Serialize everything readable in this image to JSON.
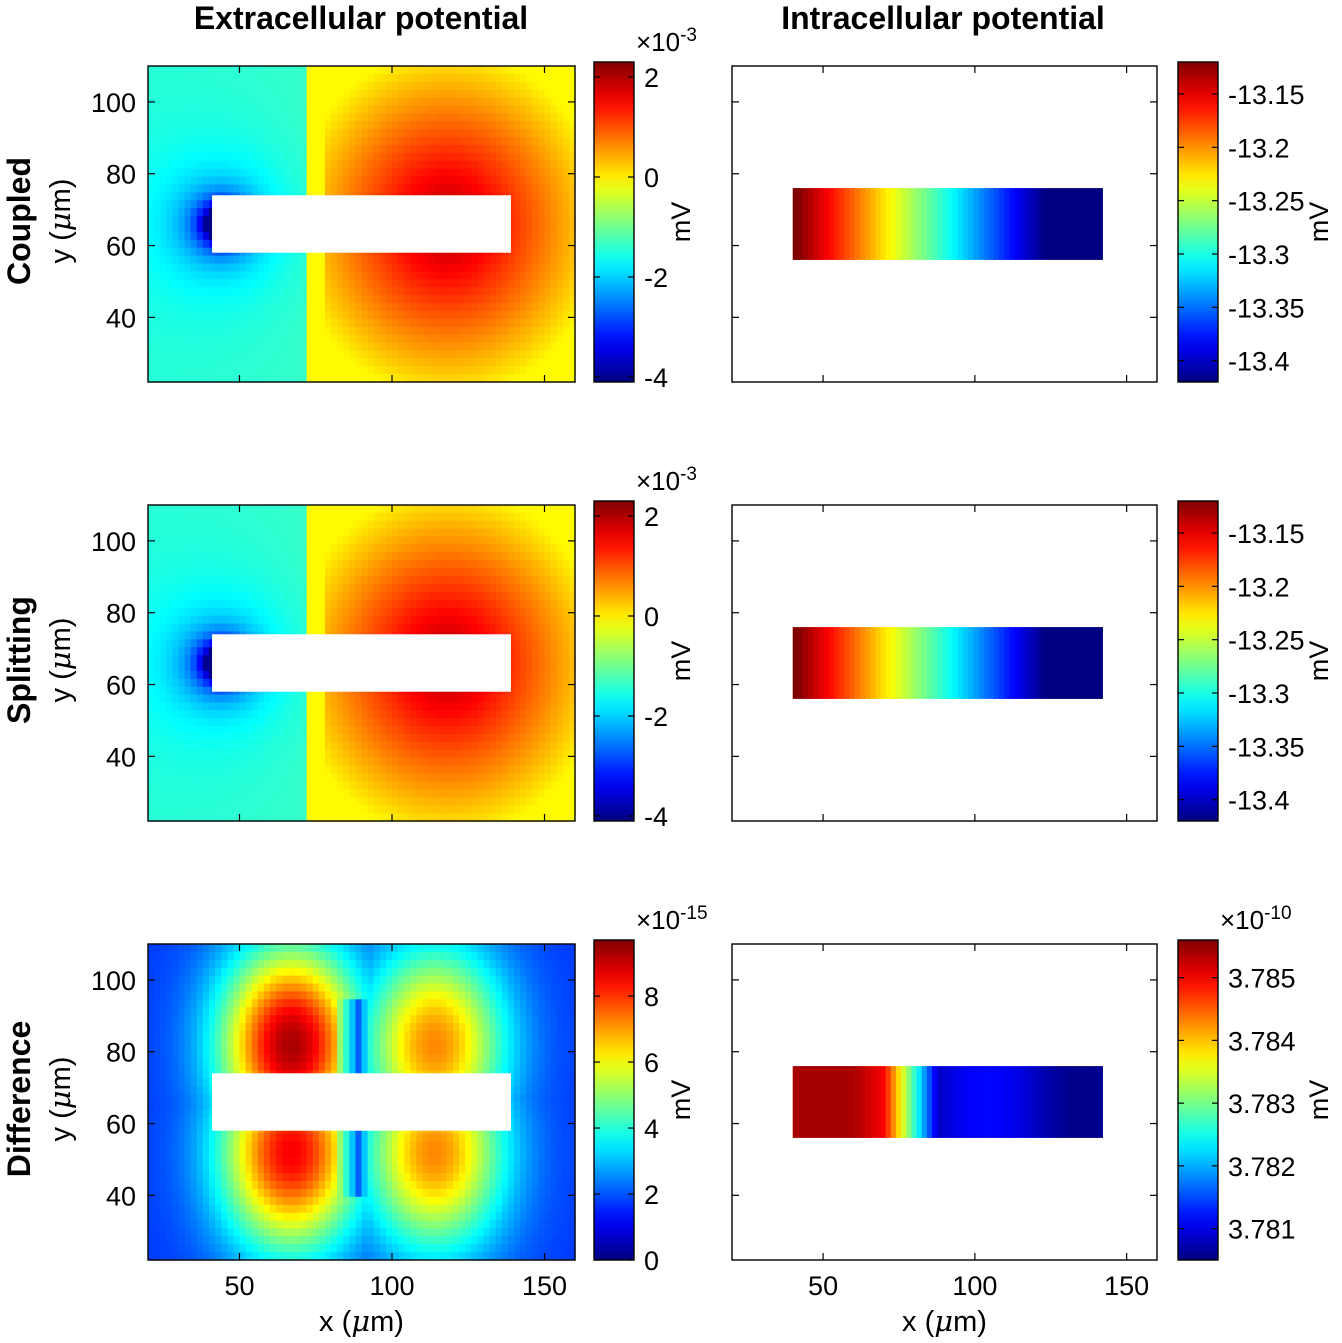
{
  "column_titles": [
    "Extracellular potential",
    "Intracellular potential"
  ],
  "row_titles": [
    "Coupled",
    "Splitting",
    "Difference"
  ],
  "x_axis_label": "x (μm)",
  "x_axis_label_parts": {
    "pre": "x (",
    "mu": "μ",
    "post": "m)"
  },
  "y_axis_label": "y (μm)",
  "y_axis_label_parts": {
    "pre": "y (",
    "mu": "μ",
    "post": "m)"
  },
  "colorbar_unit": "mV",
  "colormap": "jet",
  "chart_data": [
    {
      "type": "heatmap",
      "row": "Coupled",
      "column": "Extracellular potential",
      "xlim": [
        20,
        160
      ],
      "ylim": [
        22,
        110
      ],
      "x_ticks": [
        50,
        100,
        150
      ],
      "x_tick_labels_shown": false,
      "y_ticks": [
        40,
        60,
        80,
        100
      ],
      "y_tick_labels": [
        "40",
        "60",
        "80",
        "100"
      ],
      "cell_mask": {
        "x": [
          41,
          139
        ],
        "y": [
          58,
          74
        ],
        "fill": "#ffffff"
      },
      "field": "dipole",
      "colorbar": {
        "clim": [
          -4.1,
          2.3
        ],
        "ticks": [
          -4,
          -2,
          0,
          2
        ],
        "tick_labels": [
          "-4",
          "-2",
          "0",
          "2"
        ],
        "multiplier_base": "×10",
        "multiplier_exp": "-3",
        "unit": "mV"
      }
    },
    {
      "type": "heatmap",
      "row": "Coupled",
      "column": "Intracellular potential",
      "xlim": [
        20,
        160
      ],
      "ylim": [
        22,
        110
      ],
      "x_ticks": [
        50,
        100,
        150
      ],
      "x_tick_labels_shown": false,
      "y_ticks": [
        40,
        60,
        80,
        100
      ],
      "y_tick_labels_shown": false,
      "cell_region": {
        "x": [
          40,
          142
        ],
        "y": [
          56,
          76
        ]
      },
      "field": "gradient_x",
      "colorbar": {
        "clim": [
          -13.42,
          -13.12
        ],
        "ticks": [
          -13.4,
          -13.35,
          -13.3,
          -13.25,
          -13.2,
          -13.15
        ],
        "tick_labels": [
          "-13.4",
          "-13.35",
          "-13.3",
          "-13.25",
          "-13.2",
          "-13.15"
        ],
        "unit": "mV"
      }
    },
    {
      "type": "heatmap",
      "row": "Splitting",
      "column": "Extracellular potential",
      "xlim": [
        20,
        160
      ],
      "ylim": [
        22,
        110
      ],
      "x_ticks": [
        50,
        100,
        150
      ],
      "x_tick_labels_shown": false,
      "y_ticks": [
        40,
        60,
        80,
        100
      ],
      "y_tick_labels": [
        "40",
        "60",
        "80",
        "100"
      ],
      "cell_mask": {
        "x": [
          41,
          139
        ],
        "y": [
          58,
          74
        ],
        "fill": "#ffffff"
      },
      "field": "dipole",
      "colorbar": {
        "clim": [
          -4.1,
          2.3
        ],
        "ticks": [
          -4,
          -2,
          0,
          2
        ],
        "tick_labels": [
          "-4",
          "-2",
          "0",
          "2"
        ],
        "multiplier_base": "×10",
        "multiplier_exp": "-3",
        "unit": "mV"
      }
    },
    {
      "type": "heatmap",
      "row": "Splitting",
      "column": "Intracellular potential",
      "xlim": [
        20,
        160
      ],
      "ylim": [
        22,
        110
      ],
      "x_ticks": [
        50,
        100,
        150
      ],
      "x_tick_labels_shown": false,
      "y_ticks": [
        40,
        60,
        80,
        100
      ],
      "y_tick_labels_shown": false,
      "cell_region": {
        "x": [
          40,
          142
        ],
        "y": [
          56,
          76
        ]
      },
      "field": "gradient_x",
      "colorbar": {
        "clim": [
          -13.42,
          -13.12
        ],
        "ticks": [
          -13.4,
          -13.35,
          -13.3,
          -13.25,
          -13.2,
          -13.15
        ],
        "tick_labels": [
          "-13.4",
          "-13.35",
          "-13.3",
          "-13.25",
          "-13.2",
          "-13.15"
        ],
        "unit": "mV"
      }
    },
    {
      "type": "heatmap",
      "row": "Difference",
      "column": "Extracellular potential",
      "xlim": [
        20,
        160
      ],
      "ylim": [
        22,
        110
      ],
      "x_ticks": [
        50,
        100,
        150
      ],
      "x_tick_labels": [
        "50",
        "100",
        "150"
      ],
      "y_ticks": [
        40,
        60,
        80,
        100
      ],
      "y_tick_labels": [
        "40",
        "60",
        "80",
        "100"
      ],
      "cell_mask": {
        "x": [
          41,
          139
        ],
        "y": [
          58,
          74
        ],
        "fill": "#ffffff"
      },
      "field": "quadrupole_lobes",
      "colorbar": {
        "clim": [
          0,
          9.7
        ],
        "ticks": [
          0,
          2,
          4,
          6,
          8
        ],
        "tick_labels": [
          "0",
          "2",
          "4",
          "6",
          "8"
        ],
        "multiplier_base": "×10",
        "multiplier_exp": "-15",
        "unit": "mV"
      }
    },
    {
      "type": "heatmap",
      "row": "Difference",
      "column": "Intracellular potential",
      "xlim": [
        20,
        160
      ],
      "ylim": [
        22,
        110
      ],
      "x_ticks": [
        50,
        100,
        150
      ],
      "x_tick_labels": [
        "50",
        "100",
        "150"
      ],
      "y_ticks": [
        40,
        60,
        80,
        100
      ],
      "y_tick_labels_shown": false,
      "cell_region": {
        "x": [
          40,
          142
        ],
        "y": [
          56,
          76
        ]
      },
      "field": "step_x",
      "colorbar": {
        "clim": [
          3.7805,
          3.7856
        ],
        "ticks": [
          3.781,
          3.782,
          3.783,
          3.784,
          3.785
        ],
        "tick_labels": [
          "3.781",
          "3.782",
          "3.783",
          "3.784",
          "3.785"
        ],
        "multiplier_base": "×10",
        "multiplier_exp": "-10",
        "unit": "mV"
      }
    }
  ]
}
